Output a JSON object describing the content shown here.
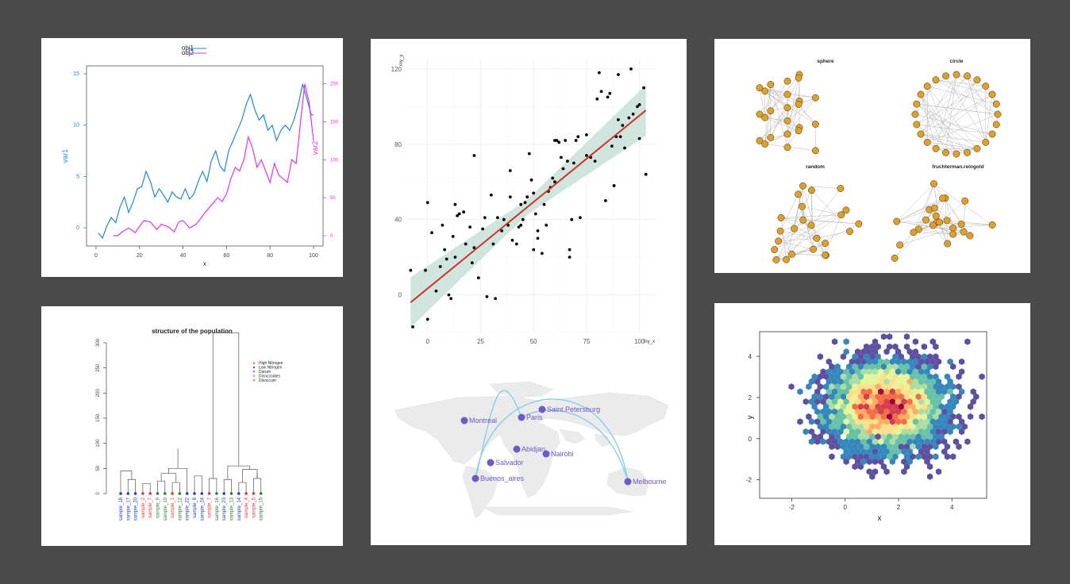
{
  "page": {
    "background": "#4a4a4a"
  },
  "chart_data": [
    {
      "id": "dual-axis-line",
      "type": "line",
      "legend": {
        "entries": [
          "obj1",
          "obj2"
        ],
        "position": "top-center"
      },
      "xlabel": "x",
      "ylabel_left": "var1",
      "ylabel_right": "var2",
      "xlim": [
        0,
        100
      ],
      "ylim_left": [
        -1,
        15
      ],
      "ylim_right": [
        0,
        210
      ],
      "xticks": [
        "0",
        "20",
        "40",
        "60",
        "80",
        "100"
      ],
      "yticks_left": [
        "0",
        "5",
        "10",
        "15"
      ],
      "yticks_right": [
        "0",
        "50",
        "100",
        "150",
        "200"
      ],
      "colors": {
        "obj1": "#1e88e5",
        "obj2": "#e833e8"
      },
      "series": [
        {
          "name": "obj1",
          "axis": "left",
          "x": [
            1,
            3,
            5,
            7,
            9,
            11,
            13,
            15,
            17,
            19,
            21,
            23,
            25,
            27,
            29,
            31,
            33,
            35,
            37,
            39,
            41,
            43,
            45,
            47,
            49,
            51,
            53,
            55,
            57,
            59,
            61,
            63,
            65,
            67,
            69,
            71,
            73,
            75,
            77,
            79,
            81,
            83,
            85,
            87,
            89,
            91,
            93,
            95,
            97,
            99,
            100
          ],
          "values": [
            -0.5,
            -1,
            0.2,
            1,
            0.5,
            2,
            3,
            1.5,
            2.5,
            3.8,
            4,
            5.5,
            4.5,
            3,
            3.8,
            3.2,
            2.5,
            3.5,
            3,
            2.8,
            3.8,
            2.8,
            3.3,
            4.5,
            5.5,
            4.5,
            6.5,
            7.5,
            6,
            5.5,
            7.5,
            8.5,
            9.5,
            10.5,
            12,
            13,
            11.5,
            10.5,
            11,
            9.5,
            10,
            8.5,
            9.5,
            10,
            9.5,
            10.5,
            12,
            14,
            12.5,
            11,
            11
          ]
        },
        {
          "name": "obj2",
          "axis": "right",
          "x": [
            8,
            10,
            12,
            15,
            18,
            20,
            22,
            25,
            28,
            30,
            33,
            36,
            38,
            40,
            43,
            46,
            48,
            50,
            53,
            56,
            58,
            60,
            62,
            64,
            66,
            68,
            70,
            72,
            74,
            76,
            78,
            80,
            82,
            84,
            86,
            88,
            90,
            92,
            94,
            96,
            98,
            100
          ],
          "values": [
            0,
            0,
            5,
            10,
            4,
            12,
            20,
            18,
            8,
            15,
            12,
            5,
            18,
            20,
            10,
            15,
            22,
            30,
            40,
            50,
            45,
            55,
            75,
            90,
            85,
            100,
            130,
            115,
            90,
            100,
            85,
            70,
            95,
            80,
            75,
            70,
            100,
            95,
            150,
            200,
            175,
            125
          ]
        }
      ]
    },
    {
      "id": "regression-scatter",
      "type": "scatter",
      "xlabel": "my_x",
      "ylabel": "my_y",
      "xlim": [
        -10,
        108
      ],
      "ylim": [
        -20,
        125
      ],
      "xticks": [
        "0",
        "25",
        "50",
        "75",
        "100"
      ],
      "yticks": [
        "0",
        "40",
        "80",
        "120"
      ],
      "point_color": "#000000",
      "fit_line": {
        "color": "#d73027",
        "from": [
          -8,
          -4
        ],
        "to": [
          103,
          98
        ]
      },
      "confidence_band_color": "#cfe6df",
      "points": [
        [
          -8,
          13
        ],
        [
          -7,
          -17
        ],
        [
          -1,
          13
        ],
        [
          0,
          49
        ],
        [
          0,
          -13
        ],
        [
          2,
          33
        ],
        [
          4,
          2
        ],
        [
          6,
          15
        ],
        [
          7,
          37
        ],
        [
          8,
          24
        ],
        [
          9,
          19
        ],
        [
          10,
          0
        ],
        [
          11,
          -2
        ],
        [
          12,
          31
        ],
        [
          13,
          20
        ],
        [
          13,
          48
        ],
        [
          14,
          42
        ],
        [
          15,
          43
        ],
        [
          17,
          44
        ],
        [
          18,
          27
        ],
        [
          20,
          36
        ],
        [
          21,
          17
        ],
        [
          22,
          25
        ],
        [
          22,
          74
        ],
        [
          24,
          9
        ],
        [
          26,
          35
        ],
        [
          27,
          41
        ],
        [
          28,
          -1
        ],
        [
          30,
          53
        ],
        [
          31,
          27
        ],
        [
          32,
          -2
        ],
        [
          33,
          41
        ],
        [
          35,
          34
        ],
        [
          36,
          40
        ],
        [
          38,
          37
        ],
        [
          39,
          52
        ],
        [
          39,
          66
        ],
        [
          40,
          29
        ],
        [
          42,
          27
        ],
        [
          43,
          36
        ],
        [
          44,
          37
        ],
        [
          45,
          40
        ],
        [
          46,
          49
        ],
        [
          47,
          52
        ],
        [
          48,
          75
        ],
        [
          49,
          61
        ],
        [
          50,
          54
        ],
        [
          51,
          43
        ],
        [
          52,
          30
        ],
        [
          54,
          22
        ],
        [
          55,
          48
        ],
        [
          57,
          55
        ],
        [
          58,
          57
        ],
        [
          59,
          62
        ],
        [
          60,
          60
        ],
        [
          61,
          82
        ],
        [
          62,
          81
        ],
        [
          63,
          73
        ],
        [
          64,
          67
        ],
        [
          65,
          82
        ],
        [
          66,
          71
        ],
        [
          67,
          20
        ],
        [
          67,
          24
        ],
        [
          68,
          40
        ],
        [
          69,
          70
        ],
        [
          70,
          82
        ],
        [
          71,
          84
        ],
        [
          72,
          41
        ],
        [
          75,
          74
        ],
        [
          77,
          73
        ],
        [
          79,
          71
        ],
        [
          80,
          104
        ],
        [
          81,
          118
        ],
        [
          82,
          108
        ],
        [
          84,
          50
        ],
        [
          85,
          105
        ],
        [
          86,
          107
        ],
        [
          87,
          79
        ],
        [
          88,
          58
        ],
        [
          89,
          84
        ],
        [
          90,
          117
        ],
        [
          90,
          93
        ],
        [
          91,
          84
        ],
        [
          92,
          90
        ],
        [
          93,
          78
        ],
        [
          95,
          94
        ],
        [
          97,
          96
        ],
        [
          99,
          100
        ],
        [
          100,
          101
        ],
        [
          100,
          83
        ],
        [
          102,
          110
        ],
        [
          103,
          64
        ],
        [
          96,
          120
        ],
        [
          88,
          58
        ],
        [
          75,
          85
        ],
        [
          60,
          82
        ],
        [
          56,
          37
        ],
        [
          52,
          34
        ],
        [
          50,
          24
        ],
        [
          44,
          48
        ]
      ]
    },
    {
      "id": "network-layouts",
      "type": "network",
      "subplots": [
        "sphere",
        "circle",
        "random",
        "fruchterman.reingold"
      ],
      "node_color": "#e0a020",
      "edge_color": "#b8b8b8"
    },
    {
      "id": "dendrogram",
      "type": "dendrogram",
      "title": "structure of the population",
      "ylim": [
        0,
        300
      ],
      "yticks": [
        "0",
        "50",
        "100",
        "150",
        "200",
        "250",
        "300"
      ],
      "legend": {
        "entries": [
          "High Nitrogen",
          "Low Nitrogen",
          "Durum",
          "Dicoccoides",
          "Dicoccum"
        ],
        "position": "top-right",
        "colors": [
          "#e53935",
          "#1e3cc8",
          "#1e3cc8",
          "#e53935",
          "#2e7d32"
        ]
      },
      "leaves": [
        {
          "label": "sample_18",
          "color": "#1e3cc8"
        },
        {
          "label": "sample_17",
          "color": "#1e3cc8"
        },
        {
          "label": "sample_20",
          "color": "#1e3cc8"
        },
        {
          "label": "sample_2",
          "color": "#e53935"
        },
        {
          "label": "sample_7",
          "color": "#e53935"
        },
        {
          "label": "sample_9",
          "color": "#2e7d32"
        },
        {
          "label": "sample_10",
          "color": "#2e7d32"
        },
        {
          "label": "sample_1",
          "color": "#e53935"
        },
        {
          "label": "sample_12",
          "color": "#2e7d32"
        },
        {
          "label": "sample_22",
          "color": "#1e3cc8"
        },
        {
          "label": "sample_8",
          "color": "#1e3cc8"
        },
        {
          "label": "sample_24",
          "color": "#1e3cc8"
        },
        {
          "label": "sample_7",
          "color": "#e53935"
        },
        {
          "label": "sample_16",
          "color": "#2e7d32"
        },
        {
          "label": "sample_23",
          "color": "#1e3cc8"
        },
        {
          "label": "sample_13",
          "color": "#2e7d32"
        },
        {
          "label": "sample_14",
          "color": "#1e3cc8"
        },
        {
          "label": "sample_4",
          "color": "#e53935"
        },
        {
          "label": "sample_5",
          "color": "#e53935"
        },
        {
          "label": "sample_15",
          "color": "#2e7d32"
        }
      ]
    },
    {
      "id": "connection-map",
      "type": "map",
      "city_color": "#6a5acd",
      "arc_color": "#87ceeb",
      "cities": [
        "Montreal",
        "Paris",
        "Saint.Petersburg",
        "Abidjan",
        "Nairobi",
        "Salvador",
        "Buenos_aires",
        "Melbourne"
      ],
      "connections": [
        [
          "Buenos_aires",
          "Paris"
        ],
        [
          "Buenos_aires",
          "Melbourne"
        ],
        [
          "Paris",
          "Melbourne"
        ]
      ]
    },
    {
      "id": "hexbin-density",
      "type": "heatmap",
      "xlabel": "x",
      "ylabel": "y",
      "xlim": [
        -3.2,
        5.3
      ],
      "ylim": [
        -2.9,
        5.2
      ],
      "xticks": [
        "-2",
        "0",
        "2",
        "4"
      ],
      "yticks": [
        "-2",
        "0",
        "2",
        "4"
      ],
      "center": [
        1.5,
        1.6
      ],
      "palette": [
        "#5e4fa2",
        "#3288bd",
        "#66c2a5",
        "#abdda4",
        "#e6f598",
        "#fee08b",
        "#fdae61",
        "#f46d43",
        "#d53e4f",
        "#9e0142"
      ]
    }
  ]
}
